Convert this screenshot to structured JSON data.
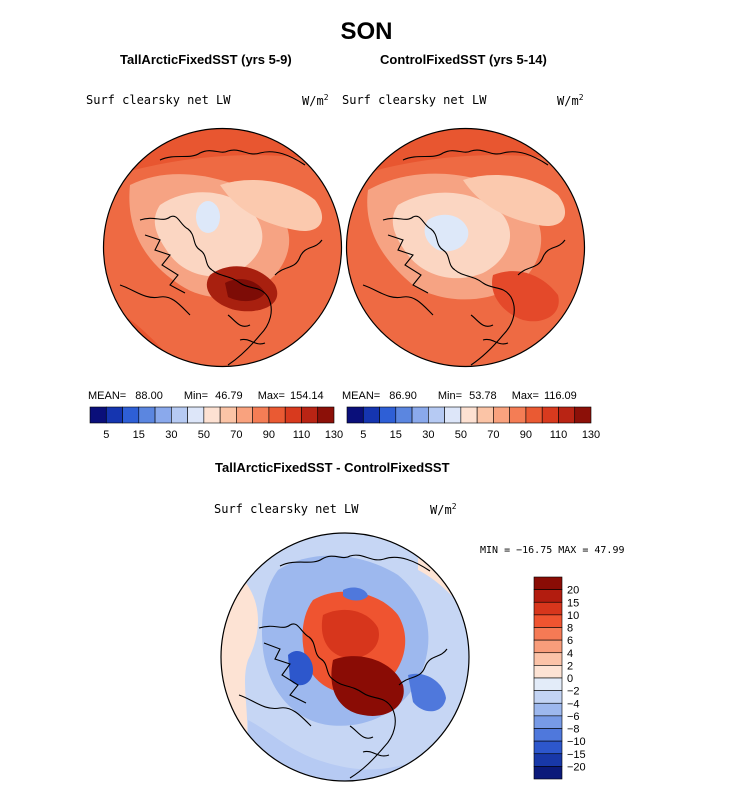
{
  "figure": {
    "title": "SON"
  },
  "panels": [
    {
      "title": "TallArcticFixedSST (yrs 5-9)",
      "variable": "Surf clearsky net LW",
      "units": "W/m",
      "units_sup": "2",
      "stats": {
        "mean_label": "MEAN=",
        "mean": "88.00",
        "min_label": "Min=",
        "min": "46.79",
        "max_label": "Max=",
        "max": "154.14"
      }
    },
    {
      "title": "ControlFixedSST (yrs 5-14)",
      "variable": "Surf clearsky net LW",
      "units": "W/m",
      "units_sup": "2",
      "stats": {
        "mean_label": "MEAN=",
        "mean": "86.90",
        "min_label": "Min=",
        "min": "53.78",
        "max_label": "Max=",
        "max": "116.09"
      }
    },
    {
      "title": "TallArcticFixedSST - ControlFixedSST",
      "variable": "Surf clearsky net LW",
      "units": "W/m",
      "units_sup": "2",
      "stats_text": "MIN = −16.75 MAX =   47.99"
    }
  ],
  "colorbar_top": {
    "colors": [
      "#0a0f7a",
      "#1535b0",
      "#2e5fd6",
      "#5b86e0",
      "#8aa9ec",
      "#b6caf3",
      "#dde6f9",
      "#fde1d2",
      "#fbc4a6",
      "#f9a27e",
      "#f47d55",
      "#ea5a33",
      "#d83a1e",
      "#b92414",
      "#8c1008"
    ],
    "labels": [
      "5",
      "15",
      "30",
      "50",
      "70",
      "90",
      "110",
      "130"
    ]
  },
  "colorbar_diff": {
    "colors": [
      "#8a0c05",
      "#b21c0f",
      "#d7361c",
      "#ef5430",
      "#f57a55",
      "#f89d7b",
      "#fbc3a8",
      "#fde3d4",
      "#e3ecf9",
      "#c3d4f4",
      "#9db8ee",
      "#779ae6",
      "#4f78dc",
      "#2d57cc",
      "#1838a8",
      "#0b1a7a"
    ],
    "labels": [
      "20",
      "15",
      "10",
      "8",
      "6",
      "4",
      "2",
      "0",
      "−2",
      "−4",
      "−6",
      "−8",
      "−10",
      "−15",
      "−20"
    ]
  },
  "chart_data": [
    {
      "type": "heatmap",
      "title": "TallArcticFixedSST (yrs 5-9)",
      "variable": "Surf clearsky net LW",
      "units": "W/m^2",
      "projection": "north polar stereographic",
      "mean": 88.0,
      "min": 46.79,
      "max": 154.14,
      "levels": [
        5,
        10,
        15,
        20,
        30,
        40,
        50,
        60,
        70,
        80,
        90,
        100,
        110,
        120,
        130
      ]
    },
    {
      "type": "heatmap",
      "title": "ControlFixedSST (yrs 5-14)",
      "variable": "Surf clearsky net LW",
      "units": "W/m^2",
      "projection": "north polar stereographic",
      "mean": 86.9,
      "min": 53.78,
      "max": 116.09,
      "levels": [
        5,
        10,
        15,
        20,
        30,
        40,
        50,
        60,
        70,
        80,
        90,
        100,
        110,
        120,
        130
      ]
    },
    {
      "type": "heatmap",
      "title": "TallArcticFixedSST - ControlFixedSST",
      "variable": "Surf clearsky net LW",
      "units": "W/m^2",
      "projection": "north polar stereographic",
      "min": -16.75,
      "max": 47.99,
      "levels": [
        -20,
        -15,
        -10,
        -8,
        -6,
        -4,
        -2,
        0,
        2,
        4,
        6,
        8,
        10,
        15,
        20
      ]
    }
  ]
}
